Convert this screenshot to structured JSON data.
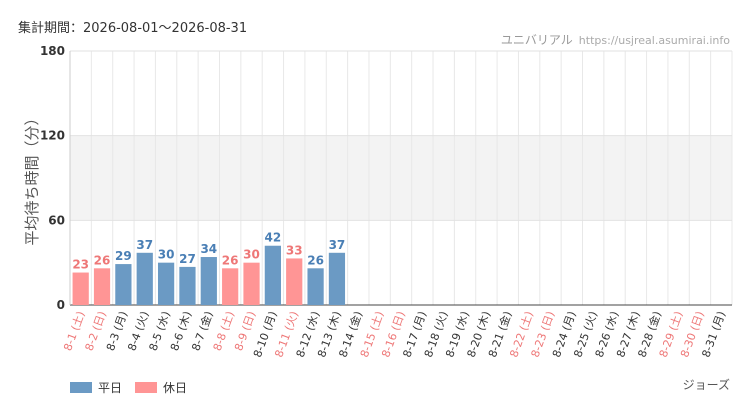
{
  "header": {
    "period": "集計期間：2026-08-01～2026-08-31",
    "site_name": "ユニバリアル",
    "site_url": "https://usjreal.asumirai.info"
  },
  "attraction": "ジョーズ",
  "legend": [
    {
      "label": "平日",
      "color": "#6b9ac4"
    },
    {
      "label": "休日",
      "color": "#ff9595"
    }
  ],
  "colors": {
    "weekday_label": "#333333",
    "holiday_label": "#ee7777",
    "weekday_value": "#4a7fb5",
    "holiday_value": "#ee7777"
  },
  "chart_data": {
    "type": "bar",
    "ylabel": "平均待ち時間（分）",
    "ylim": [
      0,
      180
    ],
    "yticks": [
      0,
      60,
      120,
      180
    ],
    "grid": true,
    "legend_position": "bottom-left",
    "categories": [
      "8-1 (土)",
      "8-2 (日)",
      "8-3 (月)",
      "8-4 (火)",
      "8-5 (水)",
      "8-6 (木)",
      "8-7 (金)",
      "8-8 (土)",
      "8-9 (日)",
      "8-10 (月)",
      "8-11 (火)",
      "8-12 (水)",
      "8-13 (木)",
      "8-14 (金)",
      "8-15 (土)",
      "8-16 (日)",
      "8-17 (月)",
      "8-18 (火)",
      "8-19 (水)",
      "8-20 (木)",
      "8-21 (金)",
      "8-22 (土)",
      "8-23 (日)",
      "8-24 (月)",
      "8-25 (火)",
      "8-26 (水)",
      "8-27 (木)",
      "8-28 (金)",
      "8-29 (土)",
      "8-30 (日)",
      "8-31 (月)"
    ],
    "day_type": [
      "休日",
      "休日",
      "平日",
      "平日",
      "平日",
      "平日",
      "平日",
      "休日",
      "休日",
      "平日",
      "休日",
      "平日",
      "平日",
      "平日",
      "休日",
      "休日",
      "平日",
      "平日",
      "平日",
      "平日",
      "平日",
      "休日",
      "休日",
      "平日",
      "平日",
      "平日",
      "平日",
      "平日",
      "休日",
      "休日",
      "平日"
    ],
    "values": [
      23,
      26,
      29,
      37,
      30,
      27,
      34,
      26,
      30,
      42,
      33,
      26,
      37,
      null,
      null,
      null,
      null,
      null,
      null,
      null,
      null,
      null,
      null,
      null,
      null,
      null,
      null,
      null,
      null,
      null,
      null
    ]
  }
}
